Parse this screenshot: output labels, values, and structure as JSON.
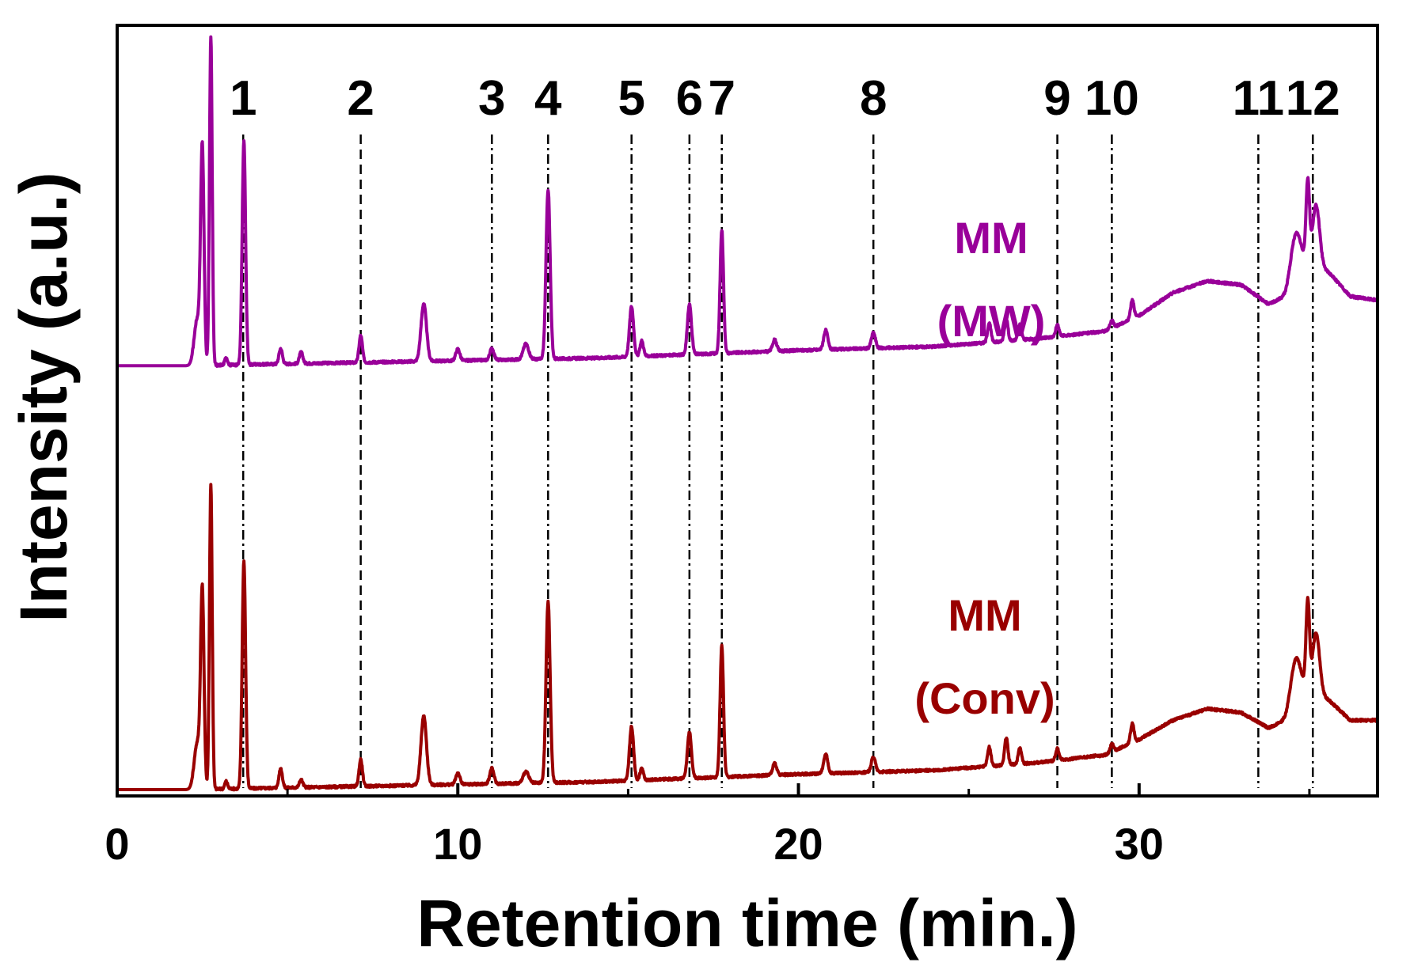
{
  "chart_data": {
    "type": "line",
    "title": "",
    "xlabel": "Retention time (min.)",
    "ylabel": "Intensity (a.u.)",
    "xlim": [
      0,
      37
    ],
    "ylim": [
      0,
      2.2
    ],
    "x_ticks": [
      0,
      10,
      20,
      30
    ],
    "x_tick_labels": [
      "0",
      "10",
      "20",
      "30"
    ],
    "x_minor_ticks": [
      5,
      15,
      25,
      35
    ],
    "grid": false,
    "peak_markers": [
      {
        "label": "1",
        "x": 3.7,
        "style": "dash-dot"
      },
      {
        "label": "2",
        "x": 7.15,
        "style": "dashed"
      },
      {
        "label": "3",
        "x": 11.0,
        "style": "dash-dot"
      },
      {
        "label": "4",
        "x": 12.65,
        "style": "dash-dot"
      },
      {
        "label": "5",
        "x": 15.1,
        "style": "dash-dot"
      },
      {
        "label": "6",
        "x": 16.8,
        "style": "dash-dot"
      },
      {
        "label": "7",
        "x": 17.75,
        "style": "dash-dot"
      },
      {
        "label": "8",
        "x": 22.2,
        "style": "dashed"
      },
      {
        "label": "9",
        "x": 27.6,
        "style": "dashed"
      },
      {
        "label": "10",
        "x": 29.2,
        "style": "dash-dot"
      },
      {
        "label": "11",
        "x": 33.5,
        "style": "dash-dot"
      },
      {
        "label": "12",
        "x": 35.1,
        "style": "dash-dot"
      }
    ],
    "series": [
      {
        "name": "MW",
        "label_line1": "MM",
        "label_line2": "(MW)",
        "color": "#990099",
        "offset": 1.1,
        "baseline": [
          [
            0,
            0.0
          ],
          [
            2.0,
            0.0
          ],
          [
            8,
            0.01
          ],
          [
            14,
            0.02
          ],
          [
            20,
            0.04
          ],
          [
            24,
            0.05
          ],
          [
            27,
            0.07
          ],
          [
            29,
            0.09
          ],
          [
            30,
            0.13
          ],
          [
            31,
            0.19
          ],
          [
            32,
            0.22
          ],
          [
            33,
            0.21
          ],
          [
            33.8,
            0.16
          ],
          [
            34.3,
            0.18
          ],
          [
            35.0,
            0.28
          ],
          [
            35.6,
            0.24
          ],
          [
            36.2,
            0.18
          ],
          [
            37,
            0.17
          ]
        ],
        "peaks": [
          {
            "x": 2.35,
            "h": 0.12,
            "w": 0.09
          },
          {
            "x": 2.5,
            "h": 0.55,
            "w": 0.05
          },
          {
            "x": 2.75,
            "h": 0.85,
            "w": 0.04
          },
          {
            "x": 3.2,
            "h": 0.02,
            "w": 0.04
          },
          {
            "x": 3.72,
            "h": 0.58,
            "w": 0.05
          },
          {
            "x": 4.8,
            "h": 0.04,
            "w": 0.05
          },
          {
            "x": 5.4,
            "h": 0.03,
            "w": 0.05
          },
          {
            "x": 7.15,
            "h": 0.07,
            "w": 0.05
          },
          {
            "x": 9.0,
            "h": 0.15,
            "w": 0.08
          },
          {
            "x": 10.0,
            "h": 0.03,
            "w": 0.06
          },
          {
            "x": 11.0,
            "h": 0.03,
            "w": 0.06
          },
          {
            "x": 12.0,
            "h": 0.04,
            "w": 0.08
          },
          {
            "x": 12.65,
            "h": 0.44,
            "w": 0.06
          },
          {
            "x": 15.1,
            "h": 0.13,
            "w": 0.06
          },
          {
            "x": 15.4,
            "h": 0.04,
            "w": 0.05
          },
          {
            "x": 16.8,
            "h": 0.13,
            "w": 0.06
          },
          {
            "x": 17.75,
            "h": 0.32,
            "w": 0.05
          },
          {
            "x": 19.3,
            "h": 0.03,
            "w": 0.06
          },
          {
            "x": 20.8,
            "h": 0.05,
            "w": 0.06
          },
          {
            "x": 22.2,
            "h": 0.04,
            "w": 0.06
          },
          {
            "x": 25.6,
            "h": 0.05,
            "w": 0.05
          },
          {
            "x": 26.1,
            "h": 0.06,
            "w": 0.05
          },
          {
            "x": 26.5,
            "h": 0.04,
            "w": 0.05
          },
          {
            "x": 27.6,
            "h": 0.03,
            "w": 0.05
          },
          {
            "x": 29.2,
            "h": 0.02,
            "w": 0.05
          },
          {
            "x": 29.8,
            "h": 0.05,
            "w": 0.05
          },
          {
            "x": 34.6,
            "h": 0.12,
            "w": 0.15
          },
          {
            "x": 34.95,
            "h": 0.2,
            "w": 0.05
          },
          {
            "x": 35.2,
            "h": 0.15,
            "w": 0.1
          }
        ]
      },
      {
        "name": "Conv",
        "label_line1": "MM",
        "label_line2": "(Conv)",
        "color": "#990000",
        "offset": 0.0,
        "baseline": [
          [
            0,
            0.0
          ],
          [
            2.0,
            0.0
          ],
          [
            8,
            0.01
          ],
          [
            14,
            0.02
          ],
          [
            20,
            0.04
          ],
          [
            24,
            0.05
          ],
          [
            27,
            0.07
          ],
          [
            29,
            0.09
          ],
          [
            30,
            0.13
          ],
          [
            31,
            0.18
          ],
          [
            32,
            0.21
          ],
          [
            33,
            0.2
          ],
          [
            33.8,
            0.16
          ],
          [
            34.3,
            0.18
          ],
          [
            35.0,
            0.27
          ],
          [
            35.6,
            0.23
          ],
          [
            36.2,
            0.18
          ],
          [
            37,
            0.18
          ]
        ],
        "peaks": [
          {
            "x": 2.35,
            "h": 0.12,
            "w": 0.09
          },
          {
            "x": 2.5,
            "h": 0.5,
            "w": 0.05
          },
          {
            "x": 2.75,
            "h": 0.79,
            "w": 0.04
          },
          {
            "x": 3.2,
            "h": 0.02,
            "w": 0.04
          },
          {
            "x": 3.72,
            "h": 0.59,
            "w": 0.05
          },
          {
            "x": 4.8,
            "h": 0.05,
            "w": 0.05
          },
          {
            "x": 5.4,
            "h": 0.02,
            "w": 0.05
          },
          {
            "x": 7.15,
            "h": 0.07,
            "w": 0.05
          },
          {
            "x": 9.0,
            "h": 0.18,
            "w": 0.08
          },
          {
            "x": 10.0,
            "h": 0.03,
            "w": 0.06
          },
          {
            "x": 11.0,
            "h": 0.04,
            "w": 0.06
          },
          {
            "x": 12.0,
            "h": 0.03,
            "w": 0.08
          },
          {
            "x": 12.65,
            "h": 0.47,
            "w": 0.06
          },
          {
            "x": 15.1,
            "h": 0.14,
            "w": 0.06
          },
          {
            "x": 15.4,
            "h": 0.03,
            "w": 0.05
          },
          {
            "x": 16.8,
            "h": 0.12,
            "w": 0.06
          },
          {
            "x": 17.75,
            "h": 0.34,
            "w": 0.05
          },
          {
            "x": 19.3,
            "h": 0.03,
            "w": 0.06
          },
          {
            "x": 20.8,
            "h": 0.05,
            "w": 0.06
          },
          {
            "x": 22.2,
            "h": 0.04,
            "w": 0.06
          },
          {
            "x": 25.6,
            "h": 0.05,
            "w": 0.05
          },
          {
            "x": 26.1,
            "h": 0.07,
            "w": 0.05
          },
          {
            "x": 26.5,
            "h": 0.04,
            "w": 0.05
          },
          {
            "x": 27.6,
            "h": 0.03,
            "w": 0.05
          },
          {
            "x": 29.2,
            "h": 0.02,
            "w": 0.05
          },
          {
            "x": 29.8,
            "h": 0.05,
            "w": 0.05
          },
          {
            "x": 34.6,
            "h": 0.12,
            "w": 0.15
          },
          {
            "x": 34.95,
            "h": 0.22,
            "w": 0.05
          },
          {
            "x": 35.2,
            "h": 0.15,
            "w": 0.1
          }
        ]
      }
    ]
  }
}
